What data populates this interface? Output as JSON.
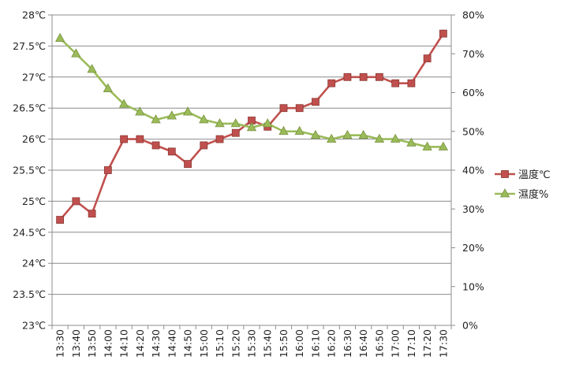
{
  "chart_data": {
    "type": "line",
    "title": "",
    "categories": [
      "13:30",
      "13:40",
      "13:50",
      "14:00",
      "14:10",
      "14:20",
      "14:30",
      "14:40",
      "14:50",
      "15:00",
      "15:10",
      "15:20",
      "15:30",
      "15:40",
      "15:50",
      "16:00",
      "16:10",
      "16:20",
      "16:30",
      "16:40",
      "16:50",
      "17:00",
      "17:10",
      "17:20",
      "17:30"
    ],
    "y_left": {
      "range": [
        23,
        28
      ],
      "ticks": [
        23,
        23.5,
        24,
        24.5,
        25,
        25.5,
        26,
        26.5,
        27,
        27.5,
        28
      ],
      "tick_labels": [
        "23℃",
        "23.5℃",
        "24℃",
        "24.5℃",
        "25℃",
        "25.5℃",
        "26℃",
        "26.5℃",
        "27℃",
        "27.5℃",
        "28℃"
      ]
    },
    "y_right": {
      "range": [
        0,
        80
      ],
      "ticks": [
        0,
        10,
        20,
        30,
        40,
        50,
        60,
        70,
        80
      ],
      "tick_labels": [
        "0%",
        "10%",
        "20%",
        "30%",
        "40%",
        "50%",
        "60%",
        "70%",
        "80%"
      ]
    },
    "grid": true,
    "legend_position": "right",
    "series": [
      {
        "name": "溫度℃",
        "axis": "left",
        "marker": "square",
        "color": "#c0504d",
        "values": [
          24.7,
          25.0,
          24.8,
          25.5,
          26.0,
          26.0,
          25.9,
          25.8,
          25.6,
          25.9,
          26.0,
          26.1,
          26.3,
          26.2,
          26.5,
          26.5,
          26.6,
          26.9,
          27.0,
          27.0,
          27.0,
          26.9,
          26.9,
          27.3,
          27.7
        ]
      },
      {
        "name": "濕度%",
        "axis": "right",
        "marker": "triangle",
        "color": "#9bbb59",
        "values": [
          74,
          70,
          66,
          61,
          57,
          55,
          53,
          54,
          55,
          53,
          52,
          52,
          51,
          52,
          50,
          50,
          49,
          48,
          49,
          49,
          48,
          48,
          47,
          46,
          46
        ]
      }
    ]
  }
}
